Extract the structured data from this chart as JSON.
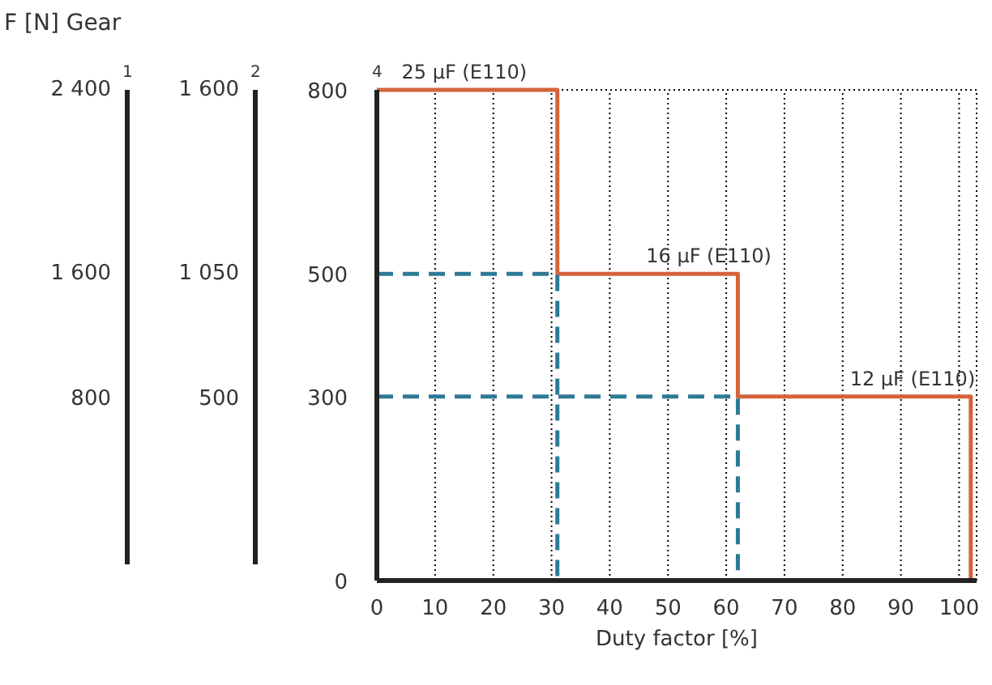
{
  "chart_data": {
    "type": "step",
    "title": "F [N] Gear",
    "xlabel": "Duty factor [%]",
    "ylabel": "4",
    "y2label": "2",
    "y3label": "1",
    "x": [
      0,
      31,
      31,
      62,
      62,
      102,
      102
    ],
    "series": [
      {
        "color": "#d4643a",
        "values": [
          800,
          800,
          500,
          500,
          300,
          300,
          0
        ],
        "line_style": "solid"
      },
      {
        "type": "line",
        "color": "#2e7a96",
        "x": [
          0,
          31,
          31
        ],
        "values": [
          500,
          500,
          0
        ],
        "line_style": "dashed"
      },
      {
        "type": "line",
        "color": "#2e7a96",
        "x": [
          0,
          62,
          62
        ],
        "values": [
          300,
          300,
          0
        ],
        "line_style": "dashed"
      }
    ],
    "xlim": [
      0,
      103
    ],
    "xticks": [
      0,
      10,
      20,
      30,
      40,
      50,
      60,
      70,
      80,
      90,
      100
    ],
    "ylim": [
      0,
      800
    ],
    "yticks": [
      0,
      300,
      500,
      800
    ],
    "grid": "x",
    "annotations": [
      {
        "text": "25 µF (E110)",
        "x": 15,
        "y": 800
      },
      {
        "text": "16 µF (E110)",
        "x": 57,
        "y": 500
      },
      {
        "text": "12 µF (E110)",
        "x": 92,
        "y": 300
      },
      "2 400",
      "1 600",
      "800",
      "1 600",
      "1 050",
      "500"
    ]
  }
}
